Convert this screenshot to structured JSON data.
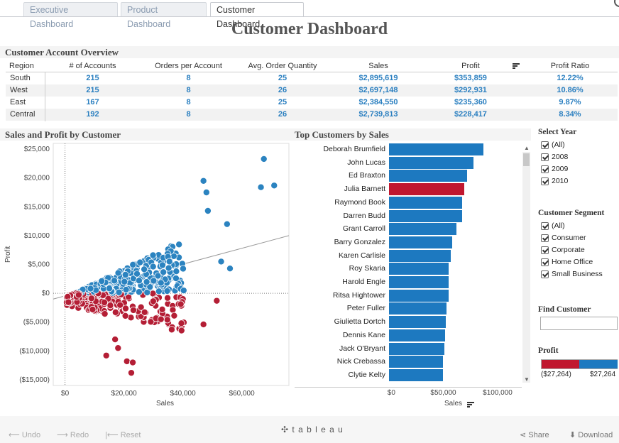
{
  "tabs": [
    "Executive Dashboard",
    "Product Dashboard",
    "Customer Dashboard"
  ],
  "title": "Customer Dashboard",
  "overview": {
    "title": "Customer Account Overview",
    "columns": [
      "Region",
      "# of Accounts",
      "Orders per Account",
      "Avg. Order Quantity",
      "Sales",
      "Profit",
      "Profit Ratio"
    ],
    "rows": [
      [
        "South",
        "215",
        "8",
        "25",
        "$2,895,619",
        "$353,859",
        "12.22%"
      ],
      [
        "West",
        "215",
        "8",
        "26",
        "$2,697,148",
        "$292,931",
        "10.86%"
      ],
      [
        "East",
        "167",
        "8",
        "25",
        "$2,384,550",
        "$235,360",
        "9.87%"
      ],
      [
        "Central",
        "192",
        "8",
        "26",
        "$2,739,813",
        "$228,417",
        "8.34%"
      ]
    ]
  },
  "scatter": {
    "title": "Sales and Profit by Customer",
    "xlabel": "Sales",
    "ylabel": "Profit",
    "xticks": [
      "$0",
      "$20,000",
      "$40,000",
      "$60,000"
    ],
    "yticks": [
      "$25,000",
      "$20,000",
      "$15,000",
      "$10,000",
      "$5,000",
      "$0",
      "($5,000)",
      "($10,000)",
      "($15,000)"
    ]
  },
  "chart_data": [
    {
      "type": "scatter",
      "title": "Sales and Profit by Customer",
      "xlabel": "Sales",
      "ylabel": "Profit",
      "xlim": [
        -4000,
        76000
      ],
      "ylim": [
        -16000,
        26000
      ],
      "colors": {
        "positive": "#2b83c0",
        "negative": "#b41e35"
      },
      "highlight_points": [
        [
          67500,
          23300
        ],
        [
          71000,
          18700
        ],
        [
          66500,
          18400
        ],
        [
          47000,
          19500
        ],
        [
          48000,
          17500
        ],
        [
          48500,
          14300
        ],
        [
          55000,
          12000
        ],
        [
          53000,
          5500
        ],
        [
          56000,
          4300
        ],
        [
          51500,
          -1300
        ],
        [
          47000,
          -5400
        ],
        [
          39500,
          -5200
        ],
        [
          33000,
          -2800
        ],
        [
          17000,
          -8000
        ],
        [
          18000,
          -9500
        ],
        [
          21000,
          -11800
        ],
        [
          23000,
          -12000
        ],
        [
          22500,
          -13800
        ],
        [
          14000,
          -10800
        ]
      ]
    },
    {
      "type": "bar",
      "title": "Top Customers by Sales",
      "xlabel": "Sales",
      "xticks": [
        "$0",
        "$50,000",
        "$100,000"
      ],
      "xlim": [
        0,
        105000
      ],
      "categories": [
        "Deborah Brumfield",
        "John Lucas",
        "Ed Braxton",
        "Julia Barnett",
        "Raymond Book",
        "Darren Budd",
        "Grant Carroll",
        "Barry Gonzalez",
        "Karen Carlisle",
        "Roy Skaria",
        "Harold Engle",
        "Ritsa Hightower",
        "Peter Fuller",
        "Giulietta Dortch",
        "Dennis Kane",
        "Jack O'Bryant",
        "Nick Crebassa",
        "Clytie Kelty"
      ],
      "values": [
        87000,
        77500,
        72000,
        69000,
        67000,
        67000,
        62000,
        58000,
        57000,
        55000,
        55000,
        55000,
        53000,
        52000,
        51500,
        51000,
        49500,
        49500
      ],
      "highlight_index": 3
    }
  ],
  "filters": {
    "year": {
      "title": "Select Year",
      "items": [
        "(All)",
        "2008",
        "2009",
        "2010"
      ]
    },
    "segment": {
      "title": "Customer Segment",
      "items": [
        "(All)",
        "Consumer",
        "Corporate",
        "Home Office",
        "Small Business"
      ]
    },
    "find": {
      "title": "Find Customer",
      "value": ""
    },
    "profit": {
      "title": "Profit",
      "min": "($27,264)",
      "max": "$27,264"
    }
  },
  "footer": {
    "undo": "Undo",
    "redo": "Redo",
    "reset": "Reset",
    "brand": "t a b l e a u",
    "share": "Share",
    "download": "Download"
  }
}
